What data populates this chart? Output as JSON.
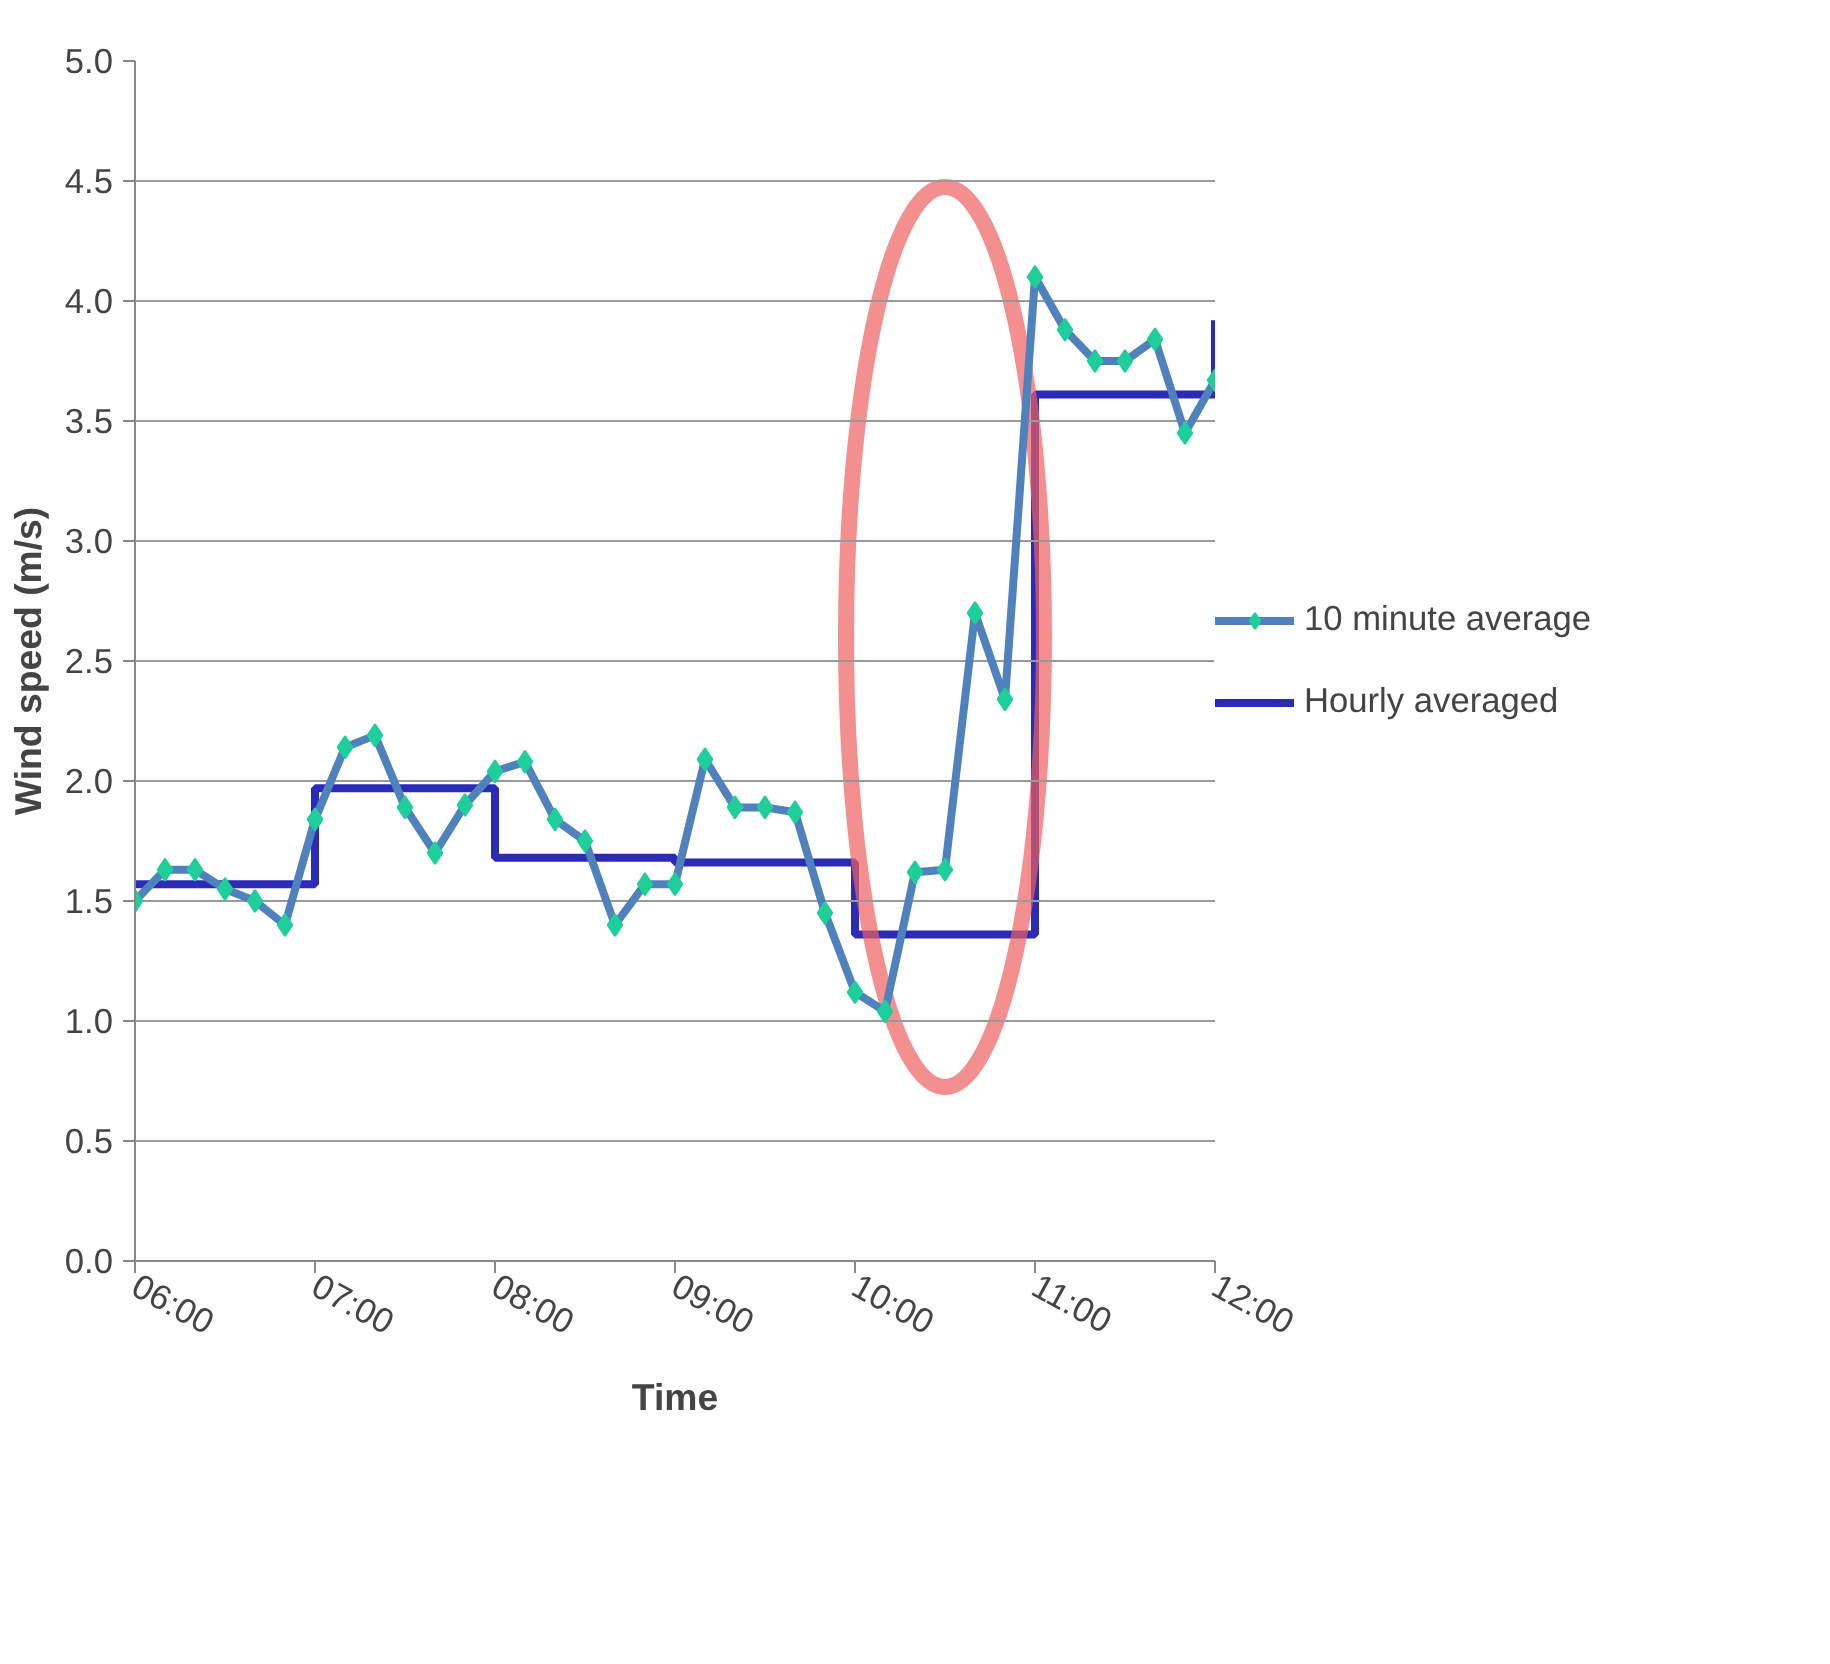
{
  "chart_data": {
    "type": "line",
    "xlabel": "Time",
    "ylabel": "Wind speed (m/s)",
    "x": [
      6,
      6.1667,
      6.3333,
      6.5,
      6.6667,
      6.8333,
      7,
      7.1667,
      7.3333,
      7.5,
      7.6667,
      7.8333,
      8,
      8.1667,
      8.3333,
      8.5,
      8.6667,
      8.8333,
      9,
      9.1667,
      9.3333,
      9.5,
      9.6667,
      9.8333,
      10,
      10.1667,
      10.3333,
      10.5,
      10.6667,
      10.8333,
      11,
      11.1667,
      11.3333,
      11.5,
      11.6667,
      11.8333,
      12
    ],
    "series": [
      {
        "name": "10 minute average",
        "color": "#4f81bd",
        "marker": "diamond",
        "values": [
          1.5,
          1.63,
          1.63,
          1.55,
          1.5,
          1.4,
          1.84,
          2.14,
          2.19,
          1.89,
          1.7,
          1.9,
          2.04,
          2.08,
          1.84,
          1.75,
          1.4,
          1.57,
          1.57,
          2.09,
          1.89,
          1.89,
          1.87,
          1.45,
          1.12,
          1.04,
          1.62,
          1.63,
          2.7,
          2.34,
          4.1,
          3.88,
          3.75,
          3.75,
          3.84,
          3.45,
          3.67
        ]
      },
      {
        "name": "Hourly averaged",
        "type": "step",
        "color": "#2b2bb8",
        "x": [
          6,
          7,
          8,
          9,
          10,
          11,
          12
        ],
        "values": [
          1.57,
          1.97,
          1.68,
          1.66,
          1.36,
          3.61,
          3.92
        ]
      }
    ],
    "xlim": [
      6,
      12
    ],
    "xticks": [
      {
        "value": 6,
        "label": "06:00"
      },
      {
        "value": 7,
        "label": "07:00"
      },
      {
        "value": 8,
        "label": "08:00"
      },
      {
        "value": 9,
        "label": "09:00"
      },
      {
        "value": 10,
        "label": "10:00"
      },
      {
        "value": 11,
        "label": "11:00"
      },
      {
        "value": 12,
        "label": "12:00"
      }
    ],
    "ylim": [
      0,
      5
    ],
    "yticks": [
      {
        "value": 0,
        "label": "0.0"
      },
      {
        "value": 0.5,
        "label": "0.5"
      },
      {
        "value": 1,
        "label": "1.0"
      },
      {
        "value": 1.5,
        "label": "1.5"
      },
      {
        "value": 2,
        "label": "2.0"
      },
      {
        "value": 2.5,
        "label": "2.5"
      },
      {
        "value": 3,
        "label": "3.0"
      },
      {
        "value": 3.5,
        "label": "3.5"
      },
      {
        "value": 4,
        "label": "4.0"
      },
      {
        "value": 4.5,
        "label": "4.5"
      },
      {
        "value": 5,
        "label": "5.0"
      }
    ],
    "grid": "y",
    "legend": "right",
    "line_style": "solid"
  }
}
